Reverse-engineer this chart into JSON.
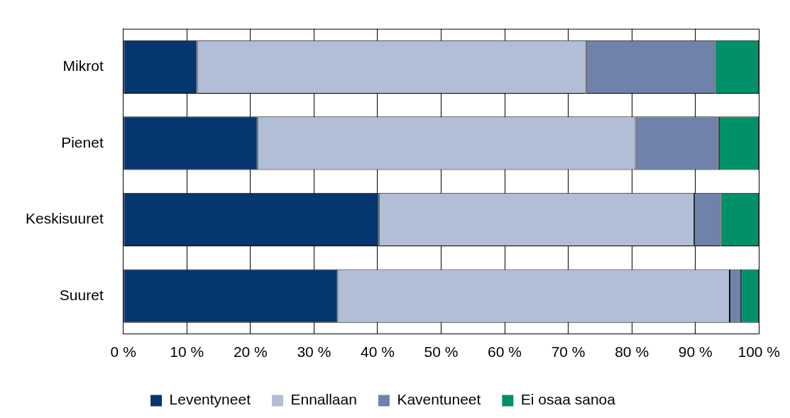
{
  "chart_data": {
    "type": "bar",
    "orientation": "horizontal",
    "stacked": true,
    "categories": [
      "Mikrot",
      "Pienet",
      "Keskisuuret",
      "Suuret"
    ],
    "series": [
      {
        "name": "Leventyneet",
        "color": "#06366f",
        "values": [
          11.6,
          21.1,
          40.2,
          33.7
        ]
      },
      {
        "name": "Ennallaan",
        "color": "#b2bdd6",
        "values": [
          61.2,
          59.5,
          49.6,
          61.7
        ]
      },
      {
        "name": "Kaventuneet",
        "color": "#6e82ab",
        "values": [
          20.3,
          13.1,
          4.2,
          1.8
        ]
      },
      {
        "name": "Ei osaa sanoa",
        "color": "#00906a",
        "values": [
          6.9,
          6.3,
          6.0,
          2.8
        ]
      }
    ],
    "xlim": [
      0,
      100
    ],
    "xticks": [
      {
        "value": 0,
        "label": "0 %"
      },
      {
        "value": 10,
        "label": "10 %"
      },
      {
        "value": 20,
        "label": "20 %"
      },
      {
        "value": 30,
        "label": "30 %"
      },
      {
        "value": 40,
        "label": "40 %"
      },
      {
        "value": 50,
        "label": "50 %"
      },
      {
        "value": 60,
        "label": "60 %"
      },
      {
        "value": 70,
        "label": "70 %"
      },
      {
        "value": 80,
        "label": "80 %"
      },
      {
        "value": 90,
        "label": "90 %"
      },
      {
        "value": 100,
        "label": "100 %"
      }
    ],
    "grid": "x",
    "legend": "bottom"
  }
}
